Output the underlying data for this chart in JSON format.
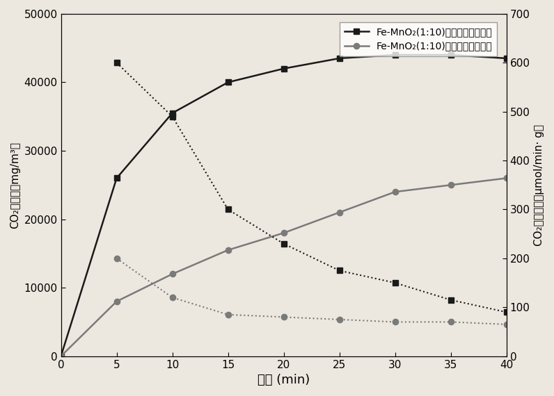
{
  "x_time": [
    0,
    5,
    10,
    15,
    20,
    25,
    30,
    35,
    40
  ],
  "four_sun_gen": [
    0,
    26000,
    35500,
    40000,
    42000,
    43500,
    44000,
    44000,
    43500
  ],
  "three_sun_gen": [
    0,
    8000,
    12000,
    15500,
    18000,
    21000,
    24000,
    25000,
    26000
  ],
  "x_rate": [
    5,
    10,
    15,
    20,
    25,
    30,
    35,
    40
  ],
  "four_sun_rate": [
    600,
    490,
    300,
    230,
    175,
    150,
    115,
    90
  ],
  "three_sun_rate": [
    200,
    120,
    85,
    80,
    75,
    70,
    70,
    65
  ],
  "xlim": [
    0,
    40
  ],
  "ylim_left": [
    0,
    50000
  ],
  "ylim_right": [
    0,
    700
  ],
  "yticks_left": [
    0,
    10000,
    20000,
    30000,
    40000,
    50000
  ],
  "yticks_right": [
    0,
    100,
    200,
    300,
    400,
    500,
    600,
    700
  ],
  "xticks": [
    0,
    5,
    10,
    15,
    20,
    25,
    30,
    35,
    40
  ],
  "xlabel": "时间 (min)",
  "ylabel_left_line1": "CO₂生成量（mg/m³）",
  "ylabel_right_line1": "CO₂生成速率（μmol/min· g）",
  "legend1": "Fe-MnO₂(1:10)在四个太阳光强下",
  "legend2": "Fe-MnO₂(1:10)在三个太阳光强下",
  "color_black": "#1a1a1a",
  "color_gray": "#7a7a7a",
  "bg_color": "#ede8df"
}
